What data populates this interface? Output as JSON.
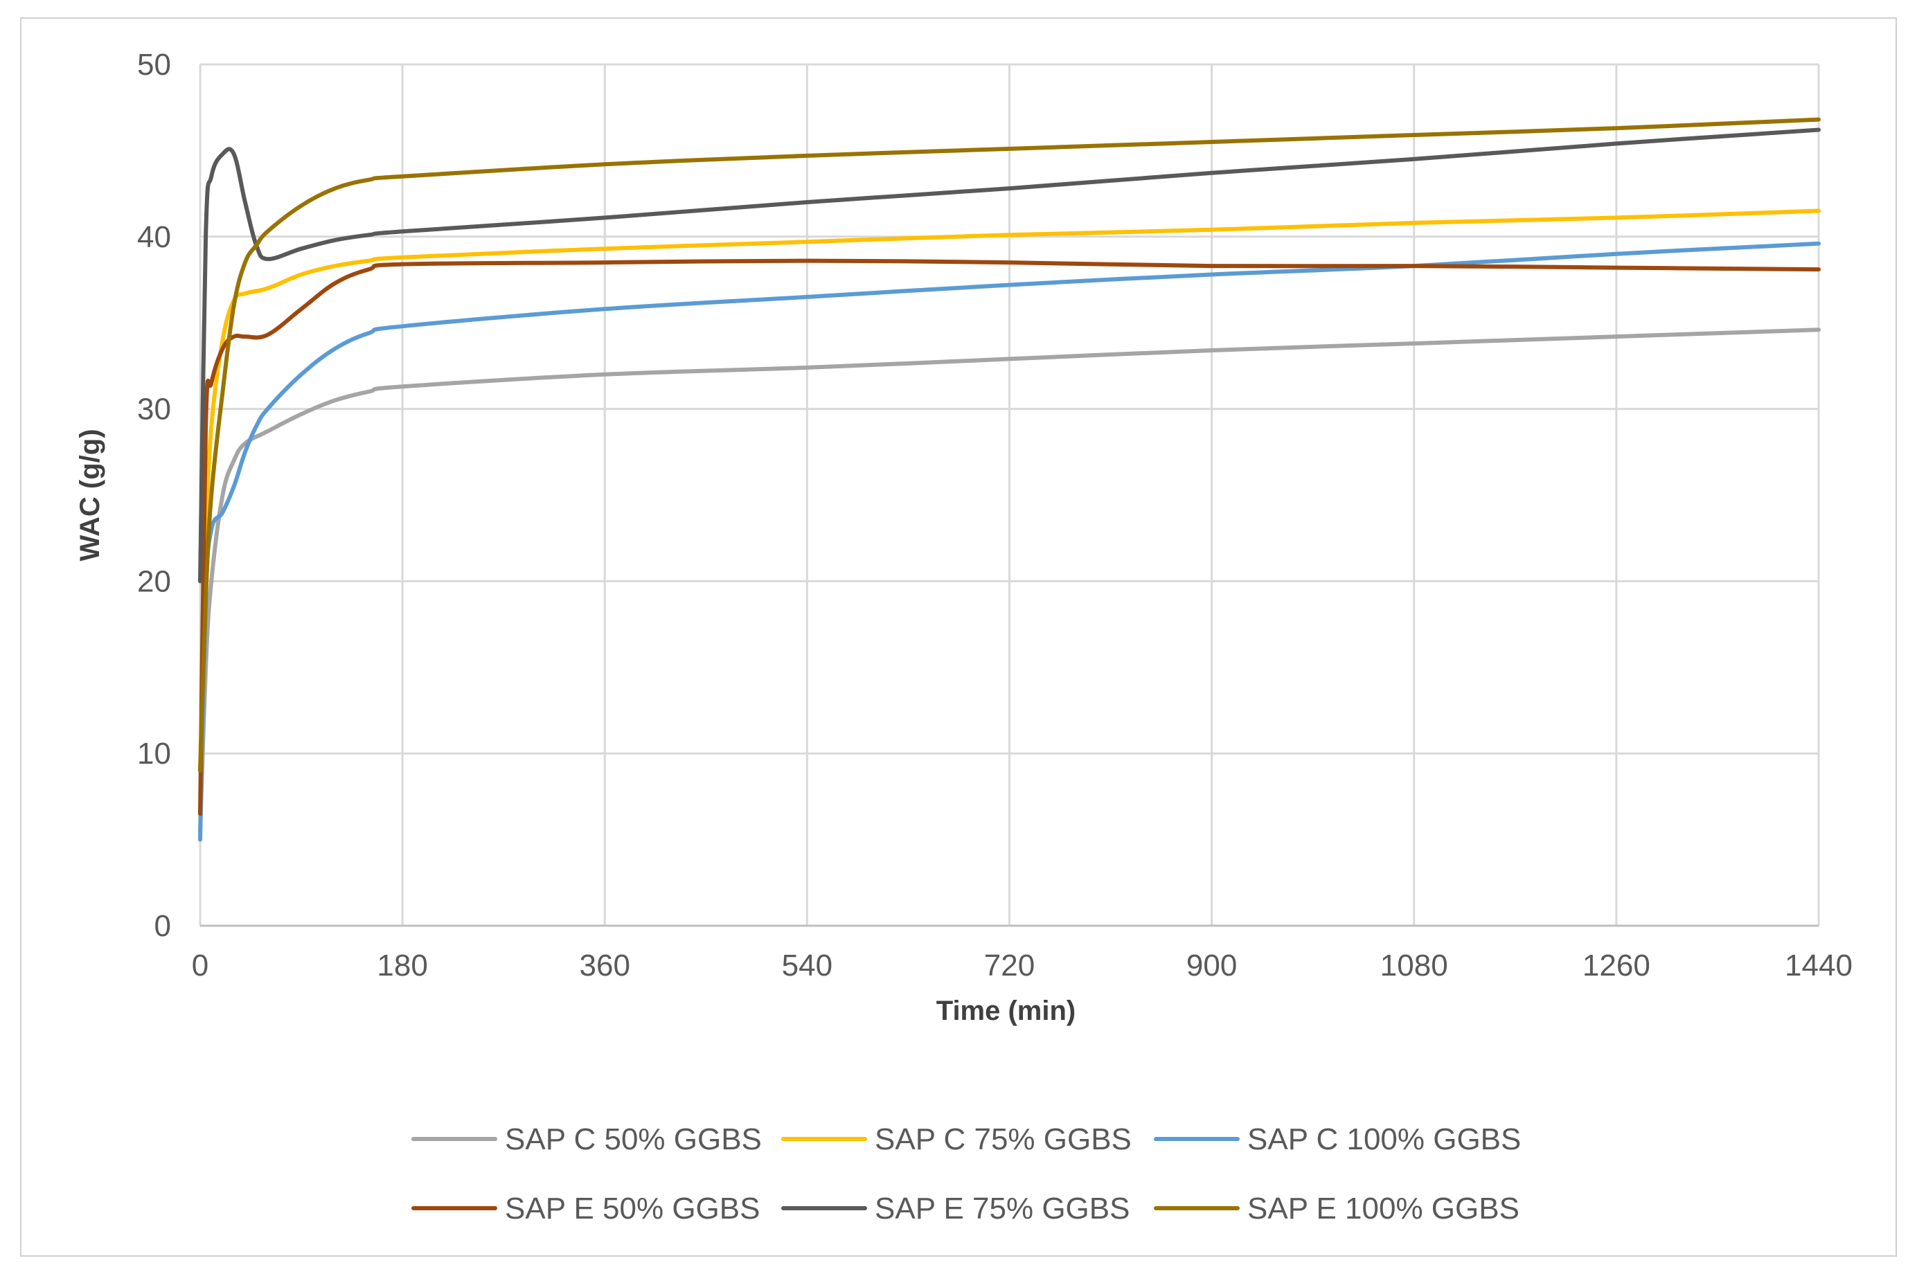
{
  "chart_data": {
    "type": "line",
    "title": "",
    "xlabel": "Time (min)",
    "ylabel": "WAC (g/g)",
    "xlim": [
      0,
      1440
    ],
    "ylim": [
      0,
      50
    ],
    "xticks": [
      0,
      180,
      360,
      540,
      720,
      900,
      1080,
      1260,
      1440
    ],
    "yticks": [
      0,
      10,
      20,
      30,
      40,
      50
    ],
    "grid": true,
    "legend_position": "bottom",
    "series": [
      {
        "name": "SAP C 50% GGBS",
        "color": "#A5A5A5",
        "x": [
          0,
          5,
          10,
          20,
          30,
          40,
          60,
          90,
          120,
          150,
          180,
          360,
          540,
          720,
          900,
          1080,
          1260,
          1440
        ],
        "y": [
          5.5,
          15,
          20,
          25,
          27,
          28,
          28.7,
          29.7,
          30.5,
          31,
          31.3,
          32,
          32.4,
          32.9,
          33.4,
          33.8,
          34.2,
          34.6
        ]
      },
      {
        "name": "SAP C 75% GGBS",
        "color": "#FFC000",
        "x": [
          0,
          5,
          10,
          20,
          30,
          40,
          60,
          90,
          120,
          150,
          180,
          360,
          540,
          720,
          900,
          1080,
          1260,
          1440
        ],
        "y": [
          9,
          22,
          29,
          34,
          36.3,
          36.7,
          37,
          37.8,
          38.3,
          38.6,
          38.8,
          39.3,
          39.7,
          40.1,
          40.4,
          40.8,
          41.1,
          41.5
        ]
      },
      {
        "name": "SAP C 100% GGBS",
        "color": "#5B9BD5",
        "x": [
          0,
          5,
          10,
          20,
          30,
          40,
          50,
          60,
          90,
          120,
          150,
          180,
          360,
          540,
          720,
          900,
          1080,
          1260,
          1440
        ],
        "y": [
          5,
          19,
          23,
          24,
          25.5,
          27.5,
          29,
          30,
          32,
          33.5,
          34.4,
          34.8,
          35.8,
          36.5,
          37.2,
          37.8,
          38.3,
          39,
          39.6
        ]
      },
      {
        "name": "SAP E 50% GGBS",
        "color": "#9E480E",
        "x": [
          0,
          5,
          10,
          20,
          30,
          40,
          60,
          90,
          120,
          150,
          180,
          360,
          540,
          720,
          900,
          1080,
          1260,
          1440
        ],
        "y": [
          6.5,
          29,
          31.5,
          33.5,
          34.2,
          34.2,
          34.3,
          35.8,
          37.3,
          38.1,
          38.4,
          38.5,
          38.6,
          38.5,
          38.3,
          38.3,
          38.2,
          38.1
        ]
      },
      {
        "name": "SAP E 75% GGBS",
        "color": "#595959",
        "x": [
          0,
          5,
          10,
          20,
          30,
          40,
          50,
          60,
          90,
          120,
          150,
          180,
          360,
          540,
          720,
          900,
          1080,
          1260,
          1440
        ],
        "y": [
          20,
          40,
          43.5,
          44.8,
          44.8,
          42,
          39.5,
          38.7,
          39.3,
          39.8,
          40.1,
          40.3,
          41.1,
          42,
          42.8,
          43.7,
          44.5,
          45.4,
          46.2
        ]
      },
      {
        "name": "SAP E 100% GGBS",
        "color": "#997300",
        "x": [
          0,
          5,
          10,
          20,
          30,
          40,
          50,
          60,
          90,
          120,
          150,
          180,
          360,
          540,
          720,
          900,
          1080,
          1260,
          1440
        ],
        "y": [
          9,
          19,
          25,
          31,
          36,
          38.5,
          39.5,
          40.3,
          41.8,
          42.8,
          43.3,
          43.5,
          44.2,
          44.7,
          45.1,
          45.5,
          45.9,
          46.3,
          46.8
        ]
      }
    ]
  }
}
